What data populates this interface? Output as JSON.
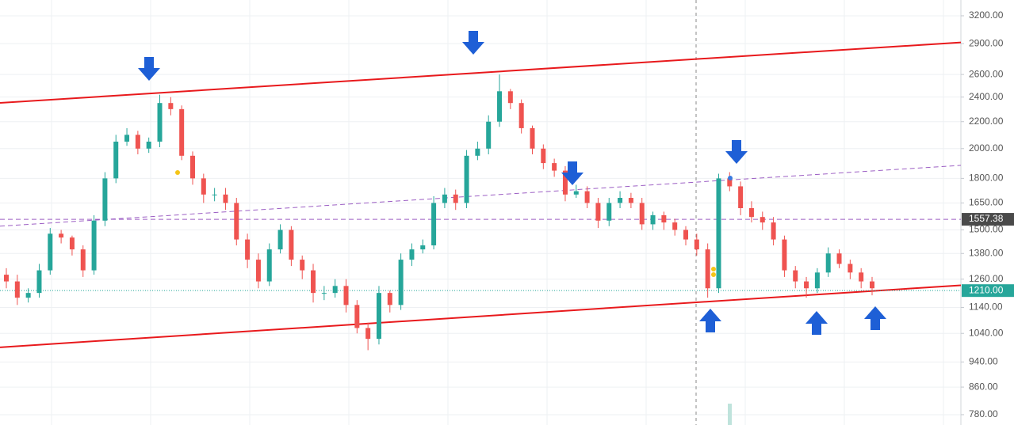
{
  "chart_data": {
    "type": "candlestick",
    "log_scale": true,
    "grid": true,
    "ylim": [
      752,
      3384
    ],
    "yticks": [
      {
        "value": 3200,
        "label": "3200.00"
      },
      {
        "value": 2900,
        "label": "2900.00"
      },
      {
        "value": 2600,
        "label": "2600.00"
      },
      {
        "value": 2400,
        "label": "2400.00"
      },
      {
        "value": 2200,
        "label": "2200.00"
      },
      {
        "value": 2000,
        "label": "2000.00"
      },
      {
        "value": 1800,
        "label": "1800.00"
      },
      {
        "value": 1650,
        "label": "1650.00"
      },
      {
        "value": 1500,
        "label": "1500.00"
      },
      {
        "value": 1380,
        "label": "1380.00"
      },
      {
        "value": 1260,
        "label": "1260.00"
      },
      {
        "value": 1140,
        "label": "1140.00"
      },
      {
        "value": 1040,
        "label": "1040.00"
      },
      {
        "value": 940,
        "label": "940.00"
      },
      {
        "value": 860,
        "label": "860.00"
      },
      {
        "value": 780,
        "label": "780.00"
      }
    ],
    "up_color": "#26a69a",
    "down_color": "#ef5350",
    "open": [
      1280,
      1250,
      1180,
      1200,
      1300,
      1480,
      1460,
      1400,
      1300,
      1550,
      1800,
      2050,
      2100,
      2000,
      2050,
      2350,
      2300,
      1950,
      1800,
      1700,
      1700,
      1650,
      1450,
      1350,
      1250,
      1400,
      1500,
      1350,
      1300,
      1200,
      1200,
      1230,
      1150,
      1060,
      1020,
      1200,
      1150,
      1350,
      1400,
      1420,
      1650,
      1700,
      1650,
      1950,
      2000,
      2200,
      2450,
      2350,
      2150,
      2000,
      1900,
      1850,
      1700,
      1720,
      1650,
      1550,
      1650,
      1680,
      1650,
      1530,
      1580,
      1540,
      1500,
      1450,
      1400,
      1220,
      1800,
      1750,
      1620,
      1570,
      1540,
      1450,
      1300,
      1250,
      1220,
      1290,
      1380,
      1330,
      1290,
      1250
    ],
    "high": [
      1310,
      1280,
      1220,
      1330,
      1510,
      1500,
      1470,
      1420,
      1580,
      1840,
      2100,
      2150,
      2130,
      2080,
      2420,
      2400,
      2330,
      1980,
      1830,
      1740,
      1740,
      1680,
      1480,
      1380,
      1430,
      1530,
      1520,
      1370,
      1330,
      1230,
      1260,
      1260,
      1170,
      1080,
      1230,
      1210,
      1380,
      1430,
      1450,
      1690,
      1740,
      1730,
      1990,
      2050,
      2250,
      2600,
      2470,
      2380,
      2170,
      2030,
      1930,
      1880,
      1760,
      1750,
      1680,
      1680,
      1720,
      1710,
      1680,
      1600,
      1600,
      1560,
      1520,
      1480,
      1430,
      1830,
      1840,
      1780,
      1660,
      1600,
      1570,
      1470,
      1320,
      1270,
      1310,
      1410,
      1400,
      1350,
      1310,
      1270
    ],
    "low": [
      1220,
      1150,
      1160,
      1180,
      1280,
      1430,
      1370,
      1270,
      1280,
      1520,
      1770,
      2020,
      1960,
      1970,
      2010,
      2250,
      1920,
      1760,
      1650,
      1660,
      1610,
      1420,
      1310,
      1220,
      1230,
      1380,
      1320,
      1260,
      1160,
      1170,
      1180,
      1120,
      1040,
      980,
      1000,
      1120,
      1130,
      1320,
      1380,
      1400,
      1620,
      1610,
      1620,
      1920,
      1960,
      2160,
      2300,
      2110,
      1960,
      1860,
      1810,
      1660,
      1680,
      1620,
      1510,
      1520,
      1620,
      1620,
      1500,
      1500,
      1500,
      1470,
      1420,
      1370,
      1180,
      1200,
      1720,
      1580,
      1540,
      1500,
      1420,
      1270,
      1220,
      1180,
      1200,
      1270,
      1310,
      1260,
      1220,
      1190
    ],
    "close": [
      1250,
      1180,
      1200,
      1300,
      1480,
      1460,
      1400,
      1300,
      1550,
      1800,
      2050,
      2100,
      2000,
      2050,
      2350,
      2300,
      1950,
      1800,
      1700,
      1700,
      1650,
      1450,
      1350,
      1250,
      1400,
      1500,
      1350,
      1300,
      1200,
      1200,
      1230,
      1150,
      1060,
      1020,
      1200,
      1150,
      1350,
      1400,
      1420,
      1650,
      1700,
      1650,
      1950,
      2000,
      2200,
      2450,
      2350,
      2150,
      2000,
      1900,
      1850,
      1700,
      1720,
      1650,
      1550,
      1650,
      1680,
      1650,
      1530,
      1580,
      1540,
      1500,
      1450,
      1400,
      1220,
      1800,
      1750,
      1620,
      1570,
      1540,
      1450,
      1300,
      1250,
      1220,
      1290,
      1380,
      1330,
      1290,
      1250,
      1220
    ],
    "lines": [
      {
        "color": "#e8191c",
        "style": "solid",
        "values": [
          2351,
          2912
        ]
      },
      {
        "color": "#e8191c",
        "style": "solid",
        "values": [
          990,
          1233
        ]
      },
      {
        "color": "#9c5fc4",
        "style": "dashed",
        "values": [
          1520,
          1885
        ]
      }
    ],
    "price_labels": [
      {
        "value": 1557.38,
        "color": "#4a4a4a",
        "line_color": "#9c5fc4",
        "style": "dashed"
      },
      {
        "value": {
          "value": 1210,
          "label": "1210.00"
        },
        "color": "#26a69a",
        "line_color": "#26a69a",
        "style": "dotted"
      }
    ]
  }
}
